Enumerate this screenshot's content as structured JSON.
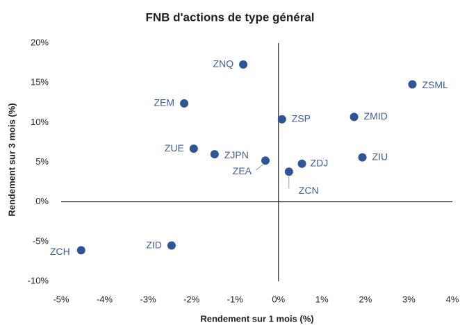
{
  "chart_data": {
    "type": "scatter",
    "title": "FNB d'actions de type général",
    "x_label": "Rendement sur 1 mois (%)",
    "y_label": "Rendement sur 3 mois (%)",
    "color": "#2f5597",
    "labels": [
      "ZNQ",
      "ZSML",
      "ZEM",
      "ZSP",
      "ZMID",
      "ZUE",
      "ZJPN",
      "ZIU",
      "ZEA",
      "ZDJ",
      "ZCN",
      "ZID",
      "ZCH"
    ],
    "x": [
      -0.81,
      3.08,
      -2.17,
      0.08,
      1.74,
      -1.95,
      -1.47,
      1.93,
      -0.3,
      0.54,
      0.24,
      -2.46,
      -4.54
    ],
    "values": [
      17.3,
      14.8,
      12.4,
      10.4,
      10.7,
      6.7,
      6.0,
      5.6,
      5.2,
      4.8,
      3.8,
      -5.5,
      -6.1
    ],
    "xlim": [
      -5,
      4
    ],
    "ylim": [
      -10,
      20
    ],
    "xticks": [
      {
        "value": -5,
        "label": "-5%"
      },
      {
        "value": -4,
        "label": "-4%"
      },
      {
        "value": -3,
        "label": "-3%"
      },
      {
        "value": -2,
        "label": "-2%"
      },
      {
        "value": -1,
        "label": "-1%"
      },
      {
        "value": 0,
        "label": "0%"
      },
      {
        "value": 1,
        "label": "1%"
      },
      {
        "value": 2,
        "label": "2%"
      },
      {
        "value": 3,
        "label": "3%"
      },
      {
        "value": 4,
        "label": "4%"
      }
    ],
    "yticks": [
      {
        "value": -10,
        "label": "-10%"
      },
      {
        "value": -5,
        "label": "-5%"
      },
      {
        "value": 0,
        "label": "0%"
      },
      {
        "value": 5,
        "label": "5%"
      },
      {
        "value": 10,
        "label": "10%"
      },
      {
        "value": 15,
        "label": "15%"
      },
      {
        "value": 20,
        "label": "20%"
      }
    ]
  }
}
